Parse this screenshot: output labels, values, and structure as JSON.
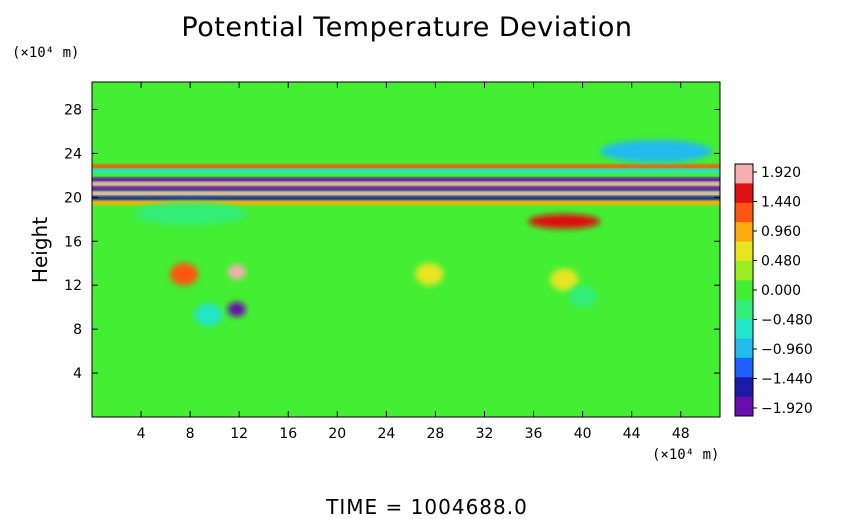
{
  "chart_data": {
    "type": "heatmap",
    "title": "Potential Temperature Deviation",
    "ylabel": "Height",
    "xlabel": "",
    "x_unit": "(×10⁴ m)",
    "y_unit": "(×10⁴ m)",
    "x_ticks": [
      4,
      8,
      12,
      16,
      20,
      24,
      28,
      32,
      36,
      40,
      44,
      48
    ],
    "y_ticks": [
      4,
      8,
      12,
      16,
      20,
      24,
      28
    ],
    "xlim": [
      0,
      51.2
    ],
    "ylim": [
      0,
      30.5
    ],
    "colorbar_ticks": [
      "1.920",
      "1.440",
      "0.960",
      "0.480",
      "0.000",
      "−0.480",
      "−0.960",
      "−1.440",
      "−1.920"
    ],
    "colorbar_range": [
      -2.1,
      2.1
    ],
    "colors": [
      "#6a0dad",
      "#1a1aa6",
      "#1f5fff",
      "#22bbee",
      "#22e6c8",
      "#33ee77",
      "#44ee33",
      "#99ee22",
      "#e6e622",
      "#ffaa11",
      "#ff5511",
      "#dd1111",
      "#f4b0b0"
    ],
    "background_value": 0.05,
    "bands": [
      {
        "y": 22.8,
        "value": 1.2
      },
      {
        "y": 22.4,
        "value": -0.6
      },
      {
        "y": 21.6,
        "value": -2.0
      },
      {
        "y": 21.2,
        "value": 2.0
      },
      {
        "y": 20.8,
        "value": -1.9
      },
      {
        "y": 20.3,
        "value": 2.0
      },
      {
        "y": 19.9,
        "value": -1.7
      },
      {
        "y": 19.5,
        "value": 1.0
      }
    ],
    "features": [
      {
        "x": 7.5,
        "y": 13.0,
        "value": 1.2
      },
      {
        "x": 11.8,
        "y": 13.2,
        "value": 1.9
      },
      {
        "x": 11.8,
        "y": 9.8,
        "value": -1.8
      },
      {
        "x": 9.5,
        "y": 9.3,
        "value": -0.5
      },
      {
        "x": 38.5,
        "y": 17.8,
        "value": 1.6
      },
      {
        "x": 38.5,
        "y": 12.5,
        "value": 0.6
      },
      {
        "x": 40.0,
        "y": 11.0,
        "value": -0.4
      },
      {
        "x": 27.5,
        "y": 13.0,
        "value": 0.5
      },
      {
        "x": 46.0,
        "y": 24.2,
        "value": -0.9
      },
      {
        "x": 8.0,
        "y": 18.5,
        "value": -0.3
      }
    ]
  },
  "time_label": "TIME",
  "time_value": "1004688.0"
}
